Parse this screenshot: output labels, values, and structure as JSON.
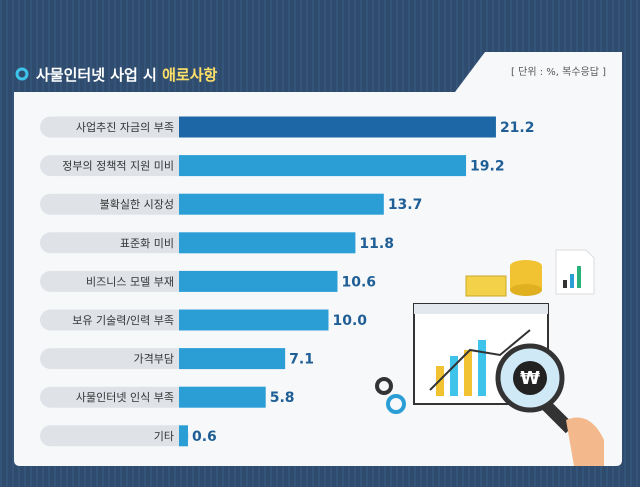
{
  "chart_data": {
    "type": "bar",
    "title": "사물인터넷 사업 시",
    "title_highlight": "애로사항",
    "unit_note": "[ 단위 : %, 복수응답 ]",
    "categories": [
      "사업추진 자금의 부족",
      "정부의 정책적 지원 미비",
      "불확실한 시장성",
      "표준화 미비",
      "비즈니스 모델 부재",
      "보유 기술력/인력 부족",
      "가격부담",
      "사물인터넷 인식 부족",
      "기타"
    ],
    "values": [
      21.2,
      19.2,
      13.7,
      11.8,
      10.6,
      10.0,
      7.1,
      5.8,
      0.6
    ],
    "value_labels": [
      "21.2",
      "19.2",
      "13.7",
      "11.8",
      "10.6",
      "10.0",
      "7.1",
      "5.8",
      "0.6"
    ],
    "colors": [
      "#1d67a6",
      "#2b9ed6"
    ]
  }
}
